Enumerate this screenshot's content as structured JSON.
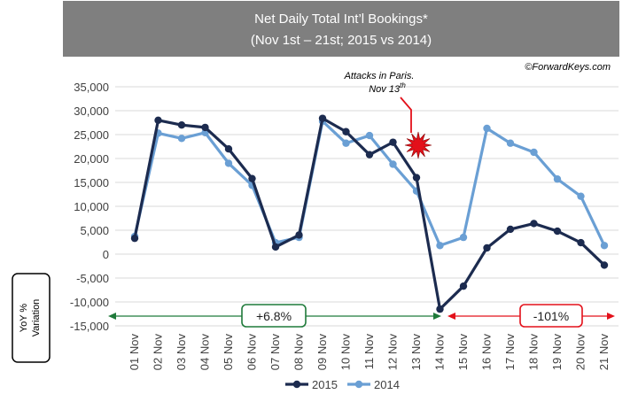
{
  "chart_data": {
    "type": "line",
    "title": "Net Daily Total Int’l Bookings*",
    "subtitle": "(Nov 1st – 21st; 2015 vs 2014)",
    "source": "©ForwardKeys.com",
    "ylabel_lines": [
      "YoY %",
      "Variation"
    ],
    "categories": [
      "01 Nov",
      "02 Nov",
      "03 Nov",
      "04 Nov",
      "05 Nov",
      "06 Nov",
      "07 Nov",
      "08 Nov",
      "09 Nov",
      "10 Nov",
      "11 Nov",
      "12 Nov",
      "13 Nov",
      "14 Nov",
      "15 Nov",
      "16 Nov",
      "17 Nov",
      "18 Nov",
      "19 Nov",
      "20 Nov",
      "21 Nov"
    ],
    "yticks": [
      "35,000",
      "30,000",
      "25,000",
      "20,000",
      "15,000",
      "10,000",
      "5,000",
      "0",
      "-5,000",
      "-10,000",
      "-15,000"
    ],
    "ylim": [
      -15000,
      35000
    ],
    "series": [
      {
        "name": "2015",
        "color": "#1c2b4f",
        "values": [
          3300,
          28000,
          27000,
          26500,
          22000,
          15800,
          1500,
          4000,
          28400,
          25600,
          20800,
          23400,
          16000,
          -11500,
          -6700,
          1300,
          5200,
          6400,
          4800,
          2400,
          -2300
        ]
      },
      {
        "name": "2014",
        "color": "#6a9fd4",
        "values": [
          3700,
          25300,
          24200,
          25400,
          19000,
          14400,
          2400,
          3500,
          27800,
          23200,
          24800,
          18800,
          13200,
          1800,
          3500,
          26300,
          23200,
          21300,
          15700,
          12100,
          1800
        ]
      }
    ],
    "annotations": {
      "event_line1": "Attacks in Paris.",
      "event_line2_main": "Nov 13",
      "event_line2_sup": "th",
      "before_label": "+6.8%",
      "after_label": "-101%",
      "before_color": "#1f7a3a",
      "after_color": "#e3101a"
    }
  }
}
